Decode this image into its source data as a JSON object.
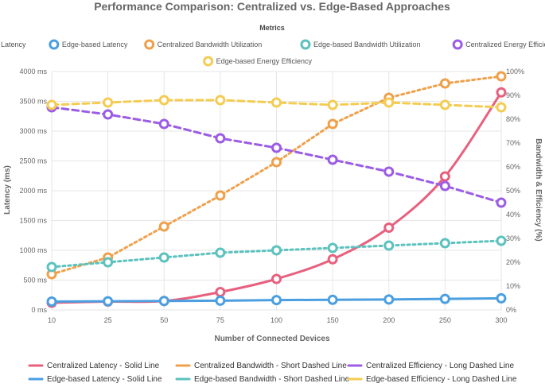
{
  "chart_data": {
    "type": "line",
    "title": "Performance Comparison: Centralized vs. Edge-Based Approaches",
    "legend_title": "Metrics",
    "xlabel": "Number of Connected Devices",
    "ylabel_left": "Latency (ms)",
    "ylabel_right": "Bandwidth & Efficiency (%)",
    "categories": [
      "10",
      "25",
      "50",
      "75",
      "100",
      "150",
      "200",
      "250",
      "300"
    ],
    "y_left": {
      "min": 0,
      "max": 4000,
      "step": 500,
      "tick_labels": [
        "0 ms",
        "500 ms",
        "1000 ms",
        "1500 ms",
        "2000 ms",
        "2500 ms",
        "3000 ms",
        "3500 ms",
        "4000 ms"
      ]
    },
    "y_right": {
      "min": 0,
      "max": 100,
      "step": 10,
      "tick_labels": [
        "0%",
        "10%",
        "20%",
        "30%",
        "40%",
        "50%",
        "60%",
        "70%",
        "80%",
        "90%",
        "100%"
      ]
    },
    "grid": true,
    "legend_position": "top",
    "series": [
      {
        "name": "Centralized Latency",
        "axis": "left",
        "color": "#e8607e",
        "dash": "solid",
        "values": [
          120,
          140,
          150,
          300,
          520,
          850,
          1380,
          2240,
          3650
        ]
      },
      {
        "name": "Edge-based Latency",
        "axis": "left",
        "color": "#4b9fe1",
        "dash": "solid",
        "values": [
          140,
          145,
          150,
          155,
          165,
          170,
          175,
          185,
          195
        ]
      },
      {
        "name": "Centralized Bandwidth Utilization",
        "axis": "right",
        "color": "#f0a04b",
        "dash": "short",
        "values": [
          15,
          22,
          35,
          48,
          62,
          78,
          89,
          95,
          98
        ]
      },
      {
        "name": "Edge-based Bandwidth Utilization",
        "axis": "right",
        "color": "#5cc2be",
        "dash": "short",
        "values": [
          18,
          20,
          22,
          24,
          25,
          26,
          27,
          28,
          29
        ]
      },
      {
        "name": "Centralized Energy Efficiency",
        "axis": "right",
        "color": "#9b5ce6",
        "dash": "long",
        "values": [
          85,
          82,
          78,
          72,
          68,
          63,
          58,
          52,
          45
        ]
      },
      {
        "name": "Edge-based Energy Efficiency",
        "axis": "right",
        "color": "#f5cc52",
        "dash": "long",
        "values": [
          86,
          87,
          88,
          88,
          87,
          86,
          87,
          86,
          85
        ]
      }
    ],
    "bottom_legend": [
      {
        "label": "Centralized Latency - Solid Line",
        "color": "#e8607e"
      },
      {
        "label": "Centralized Bandwidth - Short Dashed Line",
        "color": "#f0a04b"
      },
      {
        "label": "Centralized Efficiency - Long Dashed Line",
        "color": "#9b5ce6"
      },
      {
        "label": "Edge-based Latency - Solid Line",
        "color": "#4b9fe1"
      },
      {
        "label": "Edge-based Bandwidth - Short Dashed Line",
        "color": "#5cc2be"
      },
      {
        "label": "Edge-based Efficiency - Long Dashed Line",
        "color": "#f5cc52"
      }
    ]
  }
}
